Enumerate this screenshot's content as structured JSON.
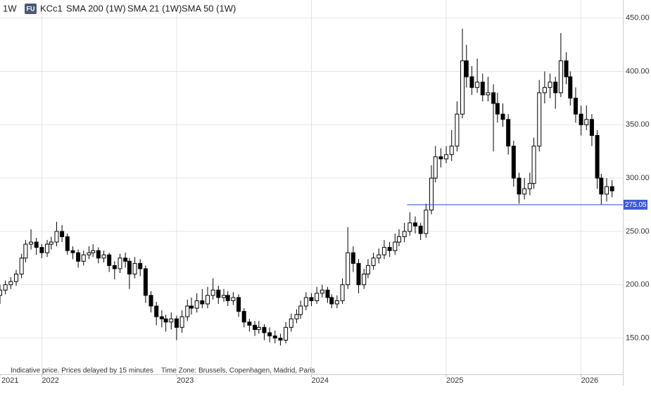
{
  "chart_data": {
    "type": "candlestick",
    "header": {
      "interval": "1W",
      "badge": "FU",
      "symbol": "KCc1",
      "indicators": [
        "SMA 200 (1W)",
        "SMA 21 (1W)",
        "SMA 50 (1W)"
      ]
    },
    "notes": [
      "Indicative price. Prices delayed by 15 minutes",
      "Time Zone: Brussels, Copenhagen, Madrid, Paris"
    ],
    "xlim": [
      2021.69,
      2026.31
    ],
    "xticks": [
      {
        "value": 2021.69,
        "label": "2021"
      },
      2022,
      2023,
      2024,
      2025,
      2026
    ],
    "ylim": [
      116,
      467
    ],
    "yticks": [
      {
        "value": 150,
        "label": "150.00"
      },
      {
        "value": 200,
        "label": "200.00"
      },
      {
        "value": 250,
        "label": "250.00"
      },
      {
        "value": 300,
        "label": "300.00"
      },
      {
        "value": 350,
        "label": "350.00"
      },
      {
        "value": 400,
        "label": "400.00"
      },
      {
        "value": 450,
        "label": "450.00"
      }
    ],
    "grid": true,
    "color": "#000000",
    "hline": {
      "value": 275.05,
      "x_start": 2024.71,
      "color": "#3b5bd6"
    },
    "x": [
      2021.69,
      2021.73,
      2021.77,
      2021.81,
      2021.85,
      2021.88,
      2021.92,
      2021.96,
      2022.0,
      2022.04,
      2022.07,
      2022.11,
      2022.15,
      2022.19,
      2022.23,
      2022.27,
      2022.31,
      2022.35,
      2022.38,
      2022.42,
      2022.46,
      2022.5,
      2022.54,
      2022.58,
      2022.62,
      2022.65,
      2022.69,
      2022.73,
      2022.77,
      2022.81,
      2022.85,
      2022.89,
      2022.92,
      2022.96,
      2023.0,
      2023.04,
      2023.08,
      2023.11,
      2023.15,
      2023.19,
      2023.23,
      2023.27,
      2023.31,
      2023.35,
      2023.38,
      2023.42,
      2023.46,
      2023.5,
      2023.54,
      2023.58,
      2023.61,
      2023.65,
      2023.69,
      2023.73,
      2023.77,
      2023.81,
      2023.85,
      2023.89,
      2023.92,
      2023.96,
      2024.0,
      2024.04,
      2024.08,
      2024.12,
      2024.15,
      2024.19,
      2024.23,
      2024.27,
      2024.31,
      2024.35,
      2024.39,
      2024.42,
      2024.46,
      2024.5,
      2024.54,
      2024.58,
      2024.62,
      2024.65,
      2024.69,
      2024.73,
      2024.77,
      2024.81,
      2024.85,
      2024.89,
      2024.92,
      2024.96,
      2025.0,
      2025.04,
      2025.08,
      2025.12,
      2025.15,
      2025.19,
      2025.23,
      2025.27,
      2025.31,
      2025.35,
      2025.38,
      2025.42,
      2025.46,
      2025.5,
      2025.54,
      2025.58,
      2025.62,
      2025.65,
      2025.69,
      2025.73,
      2025.77,
      2025.81,
      2025.85,
      2025.89,
      2025.92,
      2025.96,
      2026.0,
      2026.04,
      2026.08,
      2026.12,
      2026.15,
      2026.19,
      2026.23
    ],
    "candles": [
      [
        190,
        200,
        182,
        195
      ],
      [
        195,
        204,
        191,
        200
      ],
      [
        200,
        207,
        196,
        203
      ],
      [
        203,
        214,
        199,
        210
      ],
      [
        210,
        229,
        206,
        225
      ],
      [
        225,
        242,
        221,
        238
      ],
      [
        238,
        252,
        233,
        240
      ],
      [
        240,
        244,
        228,
        235
      ],
      [
        235,
        238,
        225,
        230
      ],
      [
        230,
        242,
        226,
        238
      ],
      [
        238,
        245,
        233,
        240
      ],
      [
        240,
        259,
        236,
        250
      ],
      [
        250,
        256,
        240,
        245
      ],
      [
        245,
        248,
        228,
        232
      ],
      [
        232,
        236,
        224,
        230
      ],
      [
        230,
        233,
        216,
        222
      ],
      [
        222,
        232,
        218,
        228
      ],
      [
        228,
        236,
        224,
        230
      ],
      [
        230,
        238,
        226,
        232
      ],
      [
        232,
        235,
        220,
        225
      ],
      [
        225,
        232,
        221,
        228
      ],
      [
        228,
        230,
        212,
        218
      ],
      [
        218,
        222,
        205,
        215
      ],
      [
        215,
        229,
        211,
        225
      ],
      [
        225,
        230,
        216,
        222
      ],
      [
        222,
        225,
        196,
        210
      ],
      [
        210,
        226,
        206,
        220
      ],
      [
        220,
        224,
        208,
        215
      ],
      [
        215,
        218,
        183,
        190
      ],
      [
        190,
        194,
        174,
        180
      ],
      [
        180,
        184,
        162,
        170
      ],
      [
        170,
        176,
        160,
        168
      ],
      [
        168,
        172,
        156,
        165
      ],
      [
        165,
        174,
        158,
        168
      ],
      [
        168,
        171,
        148,
        160
      ],
      [
        160,
        176,
        155,
        170
      ],
      [
        170,
        186,
        166,
        180
      ],
      [
        180,
        188,
        172,
        178
      ],
      [
        178,
        192,
        174,
        185
      ],
      [
        185,
        196,
        178,
        182
      ],
      [
        182,
        198,
        178,
        190
      ],
      [
        190,
        206,
        186,
        195
      ],
      [
        195,
        199,
        182,
        188
      ],
      [
        188,
        196,
        184,
        190
      ],
      [
        190,
        194,
        180,
        185
      ],
      [
        185,
        193,
        181,
        188
      ],
      [
        188,
        191,
        170,
        175
      ],
      [
        175,
        178,
        160,
        165
      ],
      [
        165,
        168,
        156,
        162
      ],
      [
        162,
        166,
        152,
        158
      ],
      [
        158,
        166,
        154,
        160
      ],
      [
        160,
        163,
        148,
        155
      ],
      [
        155,
        160,
        146,
        152
      ],
      [
        152,
        157,
        145,
        150
      ],
      [
        150,
        154,
        143,
        148
      ],
      [
        148,
        165,
        145,
        160
      ],
      [
        160,
        173,
        156,
        168
      ],
      [
        168,
        177,
        164,
        172
      ],
      [
        172,
        185,
        168,
        180
      ],
      [
        180,
        193,
        176,
        188
      ],
      [
        188,
        192,
        180,
        185
      ],
      [
        185,
        198,
        182,
        192
      ],
      [
        192,
        200,
        188,
        195
      ],
      [
        195,
        198,
        183,
        188
      ],
      [
        188,
        191,
        178,
        182
      ],
      [
        182,
        190,
        178,
        185
      ],
      [
        185,
        206,
        182,
        200
      ],
      [
        200,
        254,
        196,
        230
      ],
      [
        230,
        236,
        212,
        220
      ],
      [
        220,
        224,
        192,
        200
      ],
      [
        200,
        215,
        196,
        210
      ],
      [
        210,
        224,
        206,
        218
      ],
      [
        218,
        230,
        214,
        225
      ],
      [
        225,
        234,
        220,
        228
      ],
      [
        228,
        242,
        224,
        235
      ],
      [
        235,
        240,
        226,
        232
      ],
      [
        232,
        248,
        228,
        240
      ],
      [
        240,
        252,
        236,
        245
      ],
      [
        245,
        258,
        240,
        250
      ],
      [
        250,
        268,
        246,
        258
      ],
      [
        258,
        264,
        248,
        255
      ],
      [
        255,
        258,
        242,
        248
      ],
      [
        248,
        276,
        244,
        270
      ],
      [
        270,
        312,
        266,
        300
      ],
      [
        300,
        330,
        296,
        320
      ],
      [
        320,
        328,
        310,
        318
      ],
      [
        318,
        330,
        314,
        322
      ],
      [
        322,
        345,
        316,
        330
      ],
      [
        330,
        372,
        325,
        360
      ],
      [
        360,
        440,
        356,
        410
      ],
      [
        410,
        425,
        385,
        395
      ],
      [
        395,
        405,
        378,
        385
      ],
      [
        385,
        412,
        380,
        390
      ],
      [
        390,
        398,
        372,
        378
      ],
      [
        378,
        395,
        372,
        380
      ],
      [
        380,
        388,
        325,
        370
      ],
      [
        370,
        380,
        352,
        360
      ],
      [
        360,
        370,
        348,
        355
      ],
      [
        355,
        360,
        322,
        330
      ],
      [
        330,
        335,
        292,
        300
      ],
      [
        300,
        305,
        276,
        285
      ],
      [
        285,
        300,
        280,
        290
      ],
      [
        290,
        305,
        284,
        295
      ],
      [
        295,
        338,
        290,
        330
      ],
      [
        330,
        392,
        325,
        380
      ],
      [
        380,
        400,
        370,
        385
      ],
      [
        385,
        398,
        375,
        390
      ],
      [
        390,
        395,
        365,
        380
      ],
      [
        380,
        436,
        376,
        410
      ],
      [
        410,
        418,
        388,
        395
      ],
      [
        395,
        400,
        368,
        375
      ],
      [
        375,
        385,
        352,
        360
      ],
      [
        360,
        368,
        340,
        350
      ],
      [
        350,
        368,
        345,
        355
      ],
      [
        355,
        360,
        330,
        340
      ],
      [
        340,
        345,
        290,
        300
      ],
      [
        300,
        304,
        275,
        285
      ],
      [
        285,
        300,
        278,
        292
      ],
      [
        292,
        298,
        282,
        288
      ]
    ]
  }
}
